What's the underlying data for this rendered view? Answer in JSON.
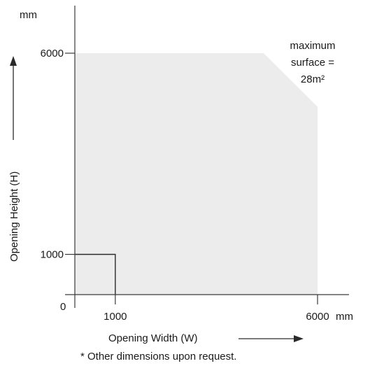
{
  "chart_data": {
    "type": "area",
    "xlabel": "Opening Width (W)",
    "ylabel": "Opening Height (H)",
    "x_unit": "mm",
    "y_unit": "mm",
    "origin_label": "0",
    "xlim": [
      0,
      6000
    ],
    "ylim": [
      0,
      6000
    ],
    "x_ticks": [
      {
        "value": 1000,
        "label": "1000"
      },
      {
        "value": 6000,
        "label": "6000"
      }
    ],
    "y_ticks": [
      {
        "value": 1000,
        "label": "1000"
      },
      {
        "value": 6000,
        "label": "6000"
      }
    ],
    "feasible_region": {
      "fill": "#ececec",
      "points": [
        {
          "x": 0,
          "y": 0
        },
        {
          "x": 0,
          "y": 6000
        },
        {
          "x": 4667,
          "y": 6000
        },
        {
          "x": 6000,
          "y": 4670
        },
        {
          "x": 6000,
          "y": 0
        }
      ]
    },
    "minimum_region": {
      "x": [
        0,
        1000
      ],
      "y": [
        0,
        1000
      ]
    },
    "annotation": {
      "lines": [
        "maximum",
        "surface =",
        "28m²"
      ],
      "position": "top-right"
    },
    "footnote": "* Other dimensions upon request.",
    "grid": false
  }
}
